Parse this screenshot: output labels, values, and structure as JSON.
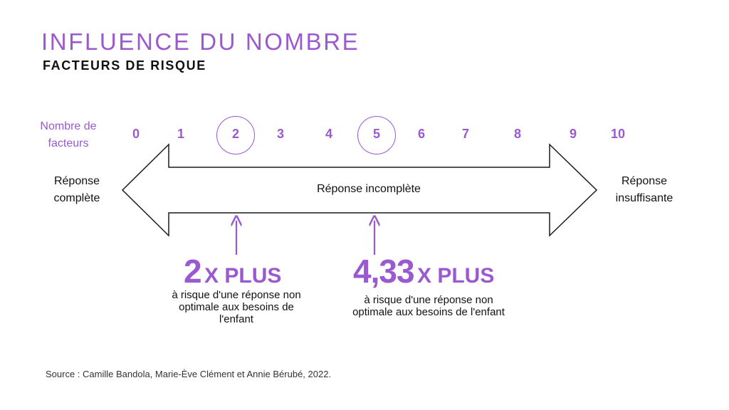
{
  "header": {
    "title": "INFLUENCE DU NOMBRE",
    "subtitle": "FACTEURS DE RISQUE"
  },
  "scale": {
    "label": "Nombre de facteurs",
    "ticks": [
      "0",
      "1",
      "2",
      "3",
      "4",
      "5",
      "6",
      "7",
      "8",
      "9",
      "10"
    ],
    "highlighted": [
      "2",
      "5"
    ]
  },
  "arrow": {
    "left_label": "Réponse complète",
    "center_label": "Réponse incomplète",
    "right_label": "Réponse insuffisante"
  },
  "stats": [
    {
      "marker": "2",
      "number": "2",
      "unit": "X PLUS",
      "description": "à risque d'une réponse non optimale aux besoins de l'enfant"
    },
    {
      "marker": "5",
      "number": "4,33",
      "unit": "X PLUS",
      "description": "à risque d'une réponse non optimale aux besoins de l'enfant"
    }
  ],
  "source": "Source : Camille Bandola, Marie-Ève Clément et Annie Bérubé, 2022.",
  "colors": {
    "accent": "#9b59d0",
    "text": "#111111",
    "outline": "#1a1a1a"
  }
}
